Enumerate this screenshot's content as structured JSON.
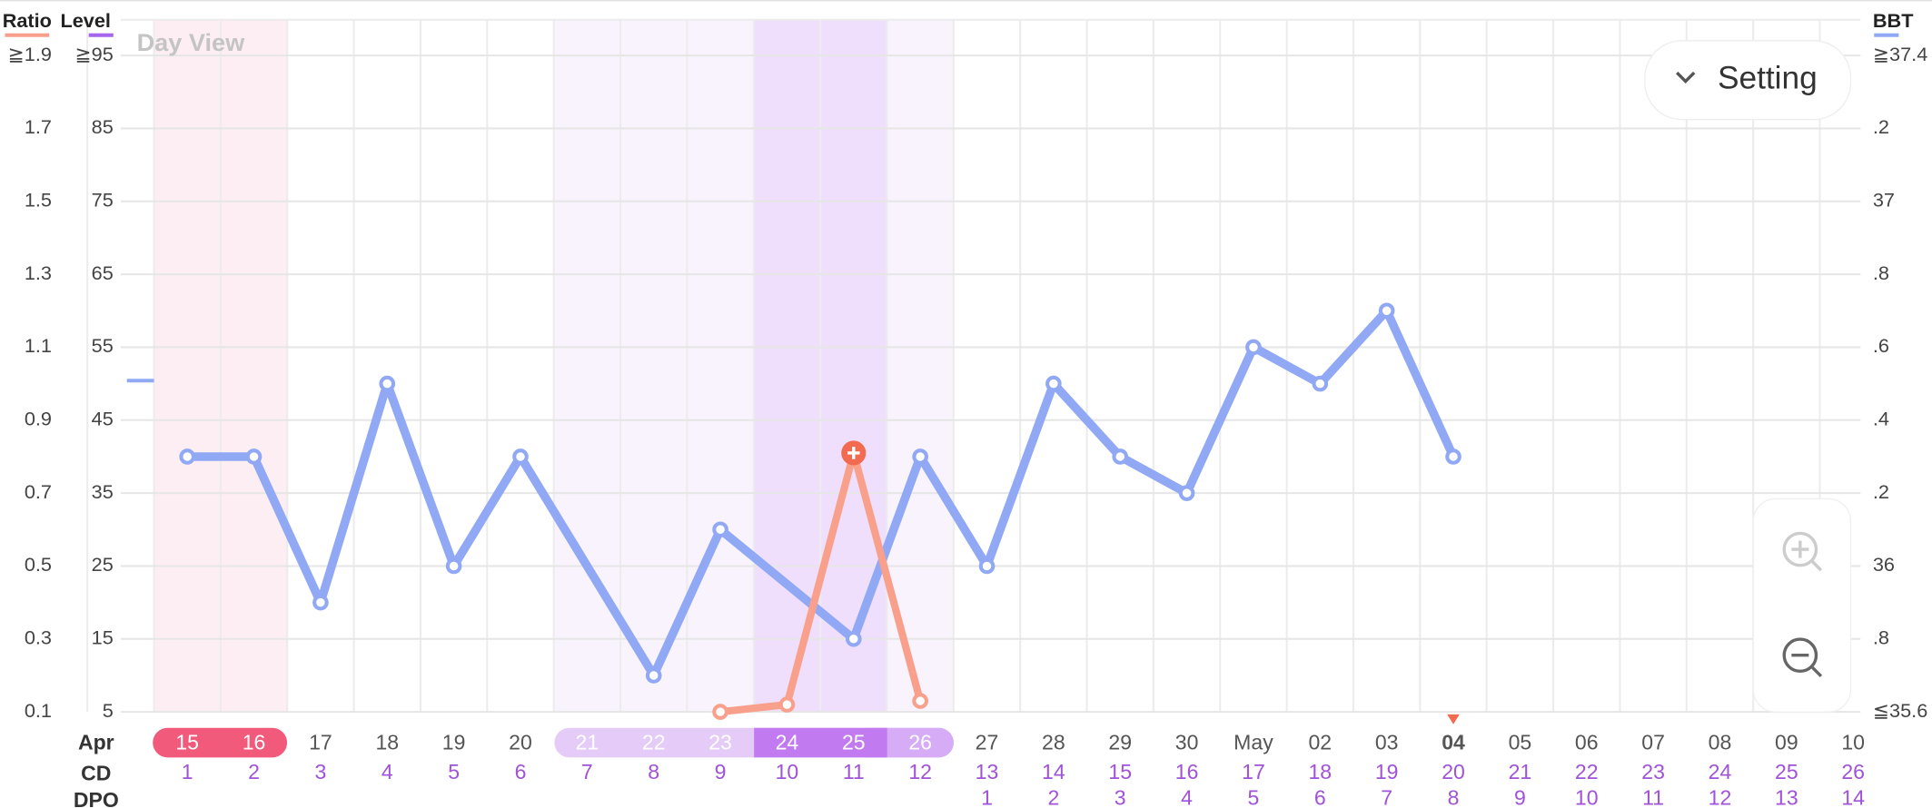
{
  "chart_data": {
    "type": "line",
    "view_label": "Day View",
    "button_label": "Setting",
    "month_label": "Apr",
    "cd_label": "CD",
    "dpo_label": "DPO",
    "level_label": "Level",
    "categories": [
      "15",
      "16",
      "17",
      "18",
      "19",
      "20",
      "21",
      "22",
      "23",
      "24",
      "25",
      "26",
      "27",
      "28",
      "29",
      "30",
      "May",
      "02",
      "03",
      "04",
      "05",
      "06",
      "07",
      "08",
      "09",
      "10"
    ],
    "cd": [
      1,
      2,
      3,
      4,
      5,
      6,
      7,
      8,
      9,
      10,
      11,
      12,
      13,
      14,
      15,
      16,
      17,
      18,
      19,
      20,
      21,
      22,
      23,
      24,
      25,
      26
    ],
    "dpo": [
      null,
      null,
      null,
      null,
      null,
      null,
      null,
      null,
      null,
      null,
      null,
      null,
      1,
      2,
      3,
      4,
      5,
      6,
      7,
      8,
      9,
      10,
      11,
      12,
      13,
      14
    ],
    "ylim": [
      0.1,
      1.9
    ],
    "yticks": [
      {
        "value": 1.9,
        "label": "≧1.9"
      },
      1.7,
      1.5,
      1.3,
      1.1,
      0.9,
      0.7,
      0.5,
      0.3,
      0.1
    ],
    "level_lim": [
      5,
      95
    ],
    "level_ticks": [
      {
        "value": 95,
        "label": "≧95"
      },
      85,
      75,
      65,
      55,
      45,
      35,
      25,
      15,
      5
    ],
    "level_color": "#a565ec",
    "y2lim": [
      35.6,
      37.4
    ],
    "y2ticks": [
      {
        "value": 37.4,
        "label": "≧37.4"
      },
      {
        "value": 37.2,
        "label": ".2"
      },
      37,
      {
        "value": 36.8,
        "label": ".8"
      },
      {
        "value": 36.6,
        "label": ".6"
      },
      {
        "value": 36.4,
        "label": ".4"
      },
      {
        "value": 36.2,
        "label": ".2"
      },
      36,
      {
        "value": 35.8,
        "label": ".8"
      },
      {
        "value": 35.6,
        "label": "≦35.6"
      }
    ],
    "grid": true,
    "series": [
      {
        "name": "Ratio",
        "color": "#f9a08c",
        "axis": "y",
        "x": [
          "23",
          "24",
          "25",
          "26"
        ],
        "values": [
          0.1,
          0.12,
          0.81,
          0.13
        ]
      },
      {
        "name": "BBT",
        "color": "#91a9f5",
        "axis": "y2",
        "x": [
          "15",
          "16",
          "17",
          "18",
          "19",
          "20",
          "22",
          "23",
          "25",
          "26",
          "27",
          "28",
          "29",
          "30",
          "May",
          "02",
          "03",
          "04"
        ],
        "values": [
          36.3,
          36.3,
          35.9,
          36.5,
          36.0,
          36.3,
          35.7,
          36.1,
          35.8,
          36.3,
          36.0,
          36.5,
          36.3,
          36.2,
          36.6,
          36.5,
          36.7,
          36.3
        ]
      }
    ]
  }
}
